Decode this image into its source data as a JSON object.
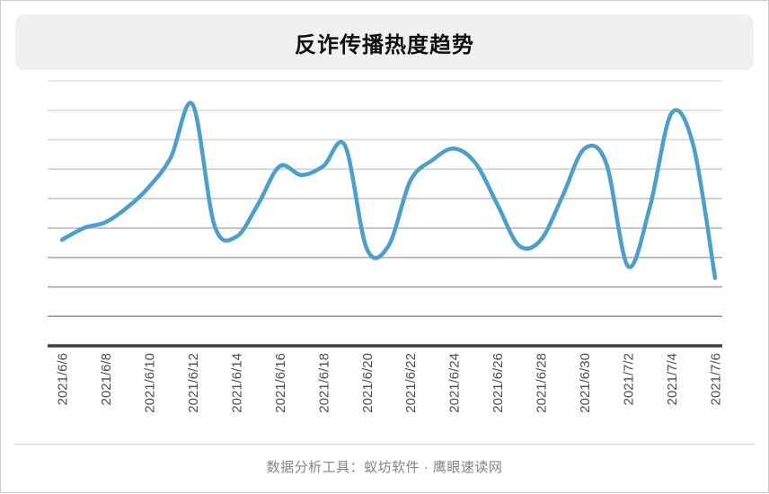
{
  "page": {
    "title": "反诈传播热度趋势",
    "footer_credit": "数据分析工具：蚁坊软件 · 鹰眼速读网"
  },
  "chart_data": {
    "type": "line",
    "title": "反诈传播热度趋势",
    "x": [
      "2021/6/6",
      "2021/6/7",
      "2021/6/8",
      "2021/6/9",
      "2021/6/10",
      "2021/6/11",
      "2021/6/12",
      "2021/6/13",
      "2021/6/14",
      "2021/6/15",
      "2021/6/16",
      "2021/6/17",
      "2021/6/18",
      "2021/6/19",
      "2021/6/20",
      "2021/6/21",
      "2021/6/22",
      "2021/6/23",
      "2021/6/24",
      "2021/6/25",
      "2021/6/26",
      "2021/6/27",
      "2021/6/28",
      "2021/6/29",
      "2021/6/30",
      "2021/7/1",
      "2021/7/2",
      "2021/7/3",
      "2021/7/4",
      "2021/7/5",
      "2021/7/6"
    ],
    "values": [
      36,
      40,
      42,
      47,
      54,
      64,
      82,
      41,
      37,
      48,
      61,
      58,
      61,
      68,
      33,
      34,
      56,
      63,
      67,
      62,
      48,
      34,
      36,
      51,
      67,
      62,
      27,
      47,
      79,
      68,
      23
    ],
    "x_tick_labels": [
      "2021/6/6",
      "2021/6/8",
      "2021/6/10",
      "2021/6/12",
      "2021/6/14",
      "2021/6/16",
      "2021/6/18",
      "2021/6/20",
      "2021/6/22",
      "2021/6/24",
      "2021/6/26",
      "2021/6/28",
      "2021/6/30",
      "2021/7/2",
      "2021/7/4",
      "2021/7/6"
    ],
    "xlabel": "",
    "ylabel": "",
    "ylim": [
      0,
      90
    ],
    "y_axis_labels_visible": false,
    "grid": "horizontal-only",
    "legend": "none",
    "line_color": "#4d9fc9",
    "axis_color": "#3d3d3d",
    "tick_label_color": "#4d4d4d",
    "grid_line_colors": [
      "#e4e4e4",
      "#dedede",
      "#d7d7d7",
      "#cfcfcf",
      "#c5c5c5",
      "#bababa",
      "#aeaeae",
      "#a2a2a2",
      "#969696"
    ]
  }
}
